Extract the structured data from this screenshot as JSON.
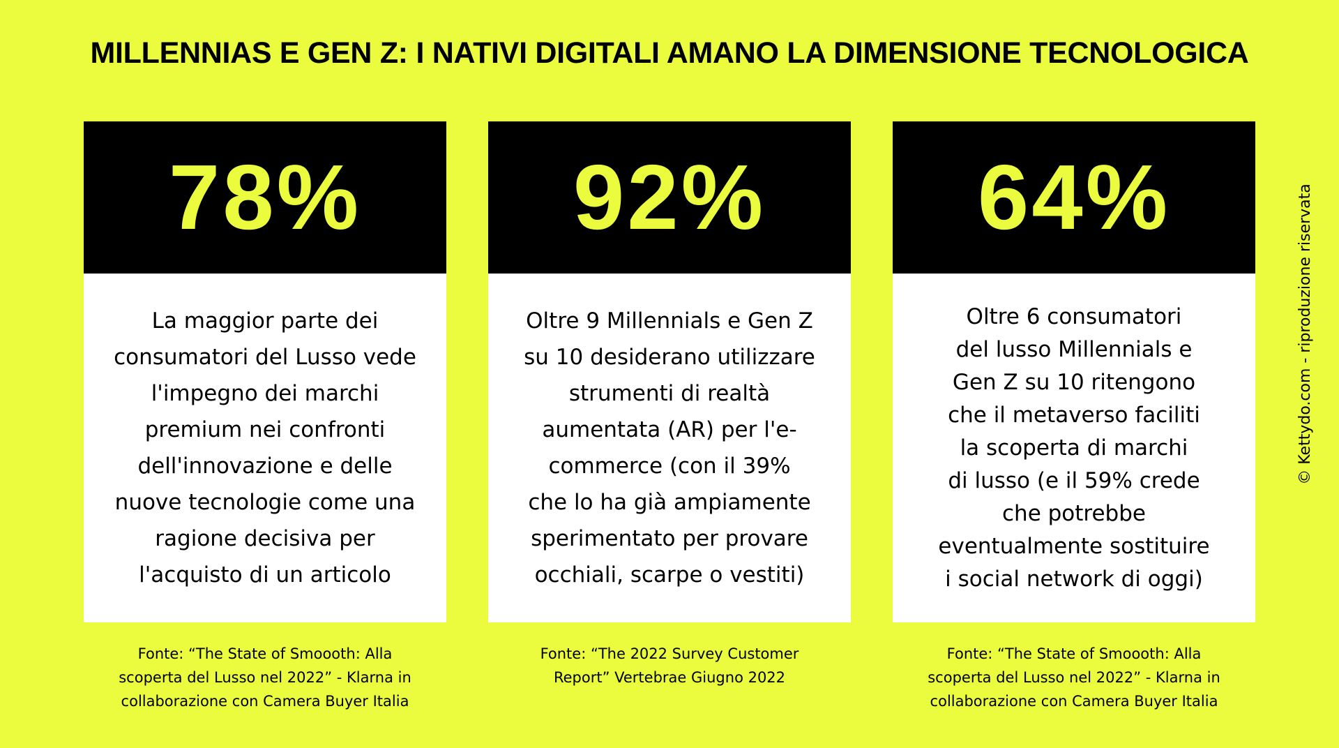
{
  "title": "MILLENNIAS E GEN Z: I NATIVI DIGITALI AMANO LA DIMENSIONE TECNOLOGICA",
  "colors": {
    "background": "#ebfb3e",
    "stat_box": "#000000",
    "stat_text": "#ebfb3e",
    "text_box": "#ffffff"
  },
  "cards": [
    {
      "value": "78%",
      "description": "La maggior parte dei\nconsumatori del Lusso vede\nl'impegno dei marchi\npremium nei confronti\ndell'innovazione e delle\nnuove tecnologie come una\nragione decisiva per\nl'acquisto di un articolo",
      "source": "Fonte: “The State of Smoooth: Alla\nscoperta del Lusso nel 2022” - Klarna in\ncollaborazione  con Camera Buyer Italia"
    },
    {
      "value": "92%",
      "description": "Oltre 9 Millennials e Gen Z\nsu 10 desiderano utilizzare\nstrumenti di realtà\naumentata (AR) per l'e-\ncommerce (con il 39%\nche lo ha già ampiamente\nsperimentato per provare\nocchiali, scarpe o vestiti)",
      "source": "Fonte: “The 2022 Survey Customer\nReport” Vertebrae Giugno 2022"
    },
    {
      "value": "64%",
      "description": "Oltre 6 consumatori\ndel lusso Millennials e\nGen Z su 10 ritengono\nche il metaverso faciliti\nla scoperta di marchi\ndi lusso (e il 59% crede\nche potrebbe\neventualmente sostituire\ni social network di oggi)",
      "source": "Fonte: “The State of Smoooth: Alla\nscoperta del Lusso nel 2022” - Klarna in\ncollaborazione  con Camera Buyer Italia"
    }
  ],
  "copyright": "© Kettydo.com - riproduzione riservata"
}
